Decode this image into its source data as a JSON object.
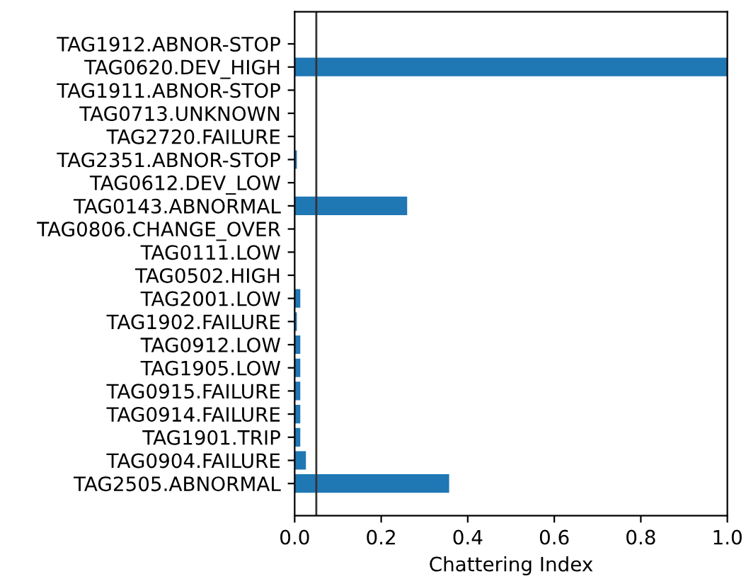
{
  "chart_data": {
    "type": "bar",
    "orientation": "horizontal",
    "xlabel": "Chattering Index",
    "categories": [
      "TAG1912.ABNOR-STOP",
      "TAG0620.DEV_HIGH",
      "TAG1911.ABNOR-STOP",
      "TAG0713.UNKNOWN",
      "TAG2720.FAILURE",
      "TAG2351.ABNOR-STOP",
      "TAG0612.DEV_LOW",
      "TAG0143.ABNORMAL",
      "TAG0806.CHANGE_OVER",
      "TAG0111.LOW",
      "TAG0502.HIGH",
      "TAG2001.LOW",
      "TAG1902.FAILURE",
      "TAG0912.LOW",
      "TAG1905.LOW",
      "TAG0915.FAILURE",
      "TAG0914.FAILURE",
      "TAG1901.TRIP",
      "TAG0904.FAILURE",
      "TAG2505.ABNORMAL"
    ],
    "values": [
      0,
      1.0,
      0,
      0,
      0,
      0.005,
      0,
      0.26,
      0,
      0,
      0,
      0.013,
      0.005,
      0.013,
      0.013,
      0.013,
      0.013,
      0.013,
      0.026,
      0.357
    ],
    "color": "#1f77b4",
    "xlim": [
      0,
      1.0
    ],
    "xticks": [
      {
        "value": 0,
        "label": "0.0"
      },
      0.2,
      0.4,
      0.6,
      0.8,
      {
        "value": 1,
        "label": "1.0"
      }
    ],
    "ref_lines": [
      {
        "axis": "x",
        "value": 0.05,
        "color": "#333333"
      }
    ],
    "grid": false
  }
}
